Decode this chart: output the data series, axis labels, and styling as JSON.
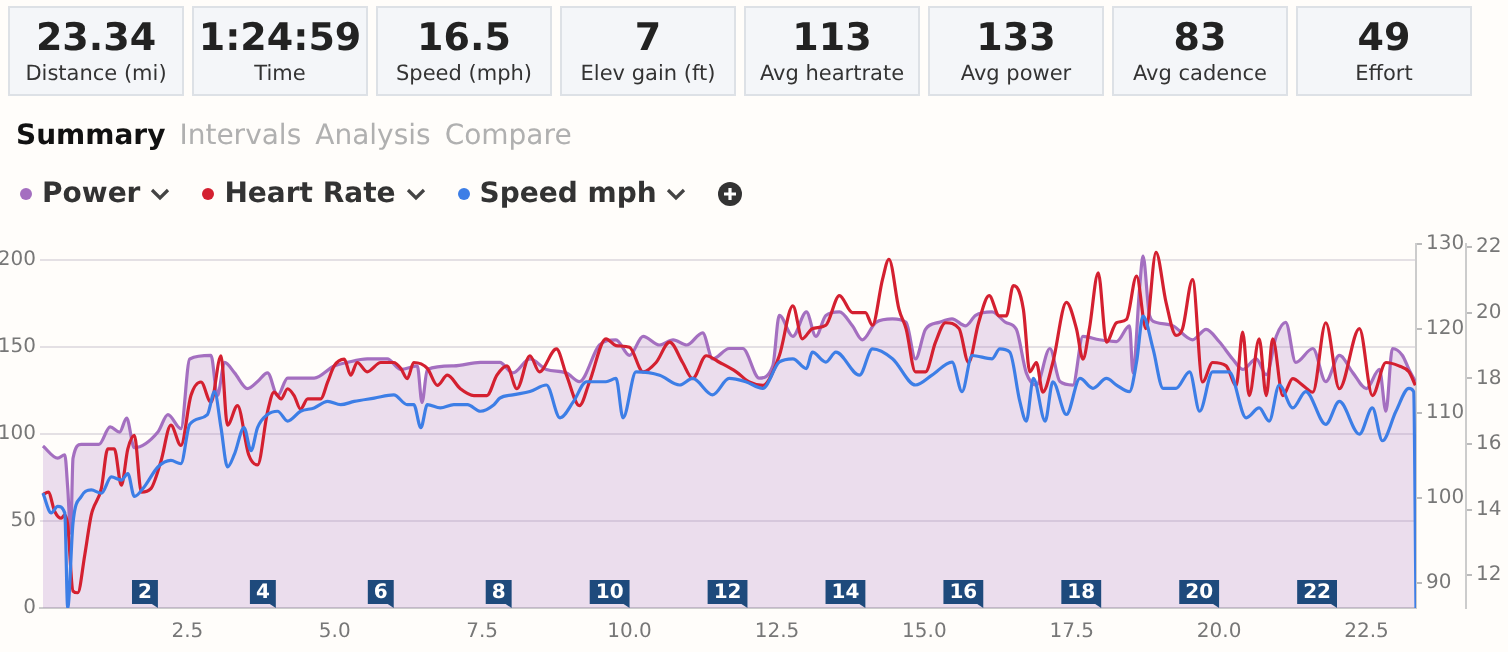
{
  "chart_data": [
    {
      "type": "other",
      "annotations": [
        "23.34",
        "Distance (mi)",
        "1:24:59",
        "Time",
        "16.5",
        "Speed (mph)",
        "7",
        "Elev gain (ft)",
        "113",
        "Avg heartrate",
        "133",
        "Avg power",
        "83",
        "Avg cadence",
        "49",
        "Effort",
        "Summary",
        "Intervals",
        "Analysis",
        "Compare"
      ]
    },
    {
      "type": "line",
      "legend": "top left",
      "grid": "y",
      "marker": "none",
      "line_style": "solid",
      "xlim": [
        0,
        23.34
      ],
      "xticks": [
        2.5,
        {
          "value": 5,
          "label": "5.0"
        },
        7.5,
        {
          "value": 10,
          "label": "10.0"
        },
        12.5,
        {
          "value": 15,
          "label": "15.0"
        },
        17.5,
        {
          "value": 20,
          "label": "20.0"
        },
        22.5
      ],
      "ylim": [
        0,
        209
      ],
      "yticks": [
        0,
        50,
        100,
        150,
        200
      ],
      "y2lim": [
        87,
        130
      ],
      "y2ticks": [
        90,
        100,
        110,
        120,
        130
      ],
      "y3lim": [
        11,
        22.1
      ],
      "y3ticks": [
        12,
        14,
        16,
        18,
        20,
        22
      ],
      "series": [
        {
          "name": "Power",
          "type": "area",
          "color": "#a46fc0",
          "x": [
            0.05,
            0.3,
            0.42,
            0.47,
            0.52,
            0.56,
            0.7,
            1.0,
            1.19,
            1.35,
            1.47,
            1.6,
            2.0,
            2.17,
            2.39,
            2.54,
            2.9,
            3.01,
            3.13,
            3.3,
            3.52,
            3.69,
            3.86,
            4.03,
            4.2,
            4.65,
            4.99,
            5.21,
            5.55,
            5.89,
            6.12,
            6.4,
            6.48,
            6.57,
            7.02,
            7.47,
            7.8,
            8.02,
            8.31,
            8.59,
            8.93,
            9.15,
            9.49,
            9.77,
            10.0,
            10.23,
            10.51,
            10.74,
            10.97,
            11.24,
            11.41,
            11.69,
            11.92,
            12.2,
            12.43,
            12.54,
            12.77,
            13.0,
            13.16,
            13.33,
            13.56,
            13.78,
            13.95,
            14.18,
            14.46,
            14.69,
            14.85,
            15.02,
            15.25,
            15.47,
            15.7,
            15.87,
            16.15,
            16.38,
            16.56,
            16.73,
            16.9,
            17.13,
            17.3,
            17.52,
            17.69,
            17.97,
            18.26,
            18.48,
            18.54,
            18.65,
            18.71,
            18.82,
            18.93,
            19.22,
            19.55,
            19.78,
            20.0,
            20.23,
            20.4,
            20.63,
            20.8,
            20.97,
            21.13,
            21.3,
            21.59,
            21.81,
            22.04,
            22.27,
            22.5,
            22.72,
            22.83,
            22.94,
            23.11,
            23.22,
            23.33
          ],
          "values": [
            93,
            86,
            88,
            69,
            43,
            86,
            94,
            94,
            104,
            101,
            109,
            92,
            101,
            111,
            103,
            143,
            145,
            122,
            141,
            135,
            126,
            130,
            135,
            122,
            132,
            132,
            139,
            141,
            143,
            143,
            137,
            139,
            118,
            137,
            139,
            141,
            141,
            135,
            143,
            137,
            135,
            130,
            151,
            154,
            145,
            156,
            151,
            154,
            151,
            158,
            143,
            149,
            149,
            132,
            139,
            168,
            156,
            170,
            156,
            168,
            170,
            162,
            154,
            164,
            166,
            164,
            143,
            160,
            164,
            166,
            162,
            168,
            170,
            164,
            160,
            135,
            128,
            149,
            130,
            128,
            156,
            154,
            153,
            162,
            135,
            183,
            202,
            168,
            164,
            162,
            154,
            160,
            153,
            143,
            137,
            143,
            134,
            156,
            164,
            141,
            149,
            130,
            145,
            135,
            126,
            137,
            113,
            149,
            145,
            137,
            130
          ]
        },
        {
          "name": "Heart Rate",
          "type": "line",
          "axis": "y2",
          "color": "#d42030",
          "x": [
            0.05,
            0.14,
            0.25,
            0.36,
            0.42,
            0.47,
            0.56,
            0.64,
            0.76,
            0.87,
            1.04,
            1.15,
            1.26,
            1.38,
            1.49,
            1.6,
            1.72,
            1.88,
            2.05,
            2.22,
            2.39,
            2.56,
            2.73,
            2.9,
            3.07,
            3.18,
            3.35,
            3.54,
            3.69,
            3.86,
            3.97,
            4.09,
            4.2,
            4.31,
            4.42,
            4.54,
            4.76,
            4.88,
            4.99,
            5.16,
            5.27,
            5.38,
            5.55,
            5.78,
            6.0,
            6.12,
            6.23,
            6.34,
            6.57,
            6.74,
            6.91,
            7.13,
            7.36,
            7.58,
            7.75,
            7.92,
            8.09,
            8.31,
            8.47,
            8.76,
            8.93,
            9.15,
            9.32,
            9.6,
            9.77,
            10.0,
            10.23,
            10.45,
            10.68,
            10.9,
            11.07,
            11.3,
            11.53,
            11.81,
            12.03,
            12.26,
            12.54,
            12.77,
            12.93,
            13.1,
            13.33,
            13.56,
            13.78,
            14.0,
            14.12,
            14.29,
            14.4,
            14.57,
            14.69,
            14.85,
            15.02,
            15.19,
            15.36,
            15.59,
            15.75,
            15.92,
            16.1,
            16.27,
            16.39,
            16.51,
            16.68,
            16.79,
            16.9,
            17.01,
            17.18,
            17.41,
            17.58,
            17.69,
            17.8,
            17.95,
            18.09,
            18.26,
            18.43,
            18.6,
            18.76,
            18.93,
            19.1,
            19.27,
            19.38,
            19.55,
            19.72,
            19.89,
            20.12,
            20.29,
            20.4,
            20.51,
            20.68,
            20.8,
            20.91,
            21.08,
            21.25,
            21.42,
            21.59,
            21.81,
            22.04,
            22.38,
            22.6,
            22.83,
            23.05,
            23.22,
            23.33
          ],
          "values": [
            100.4,
            100.7,
            98.4,
            97.6,
            98.0,
            96.8,
            89.0,
            88.8,
            93.3,
            98.0,
            101.1,
            105.8,
            105.8,
            101.5,
            105.8,
            107.4,
            100.7,
            101.1,
            104.3,
            108.6,
            106.2,
            112.1,
            113.7,
            111.3,
            116.8,
            108.6,
            110.9,
            105.1,
            103.9,
            110.2,
            112.5,
            111.7,
            112.9,
            112.1,
            110.5,
            111.7,
            111.7,
            113.7,
            115.6,
            116.4,
            114.5,
            116.0,
            114.9,
            116.0,
            116.0,
            115.3,
            114.1,
            116.0,
            115.3,
            113.3,
            114.5,
            112.9,
            112.1,
            112.1,
            114.5,
            115.6,
            112.9,
            116.8,
            114.9,
            117.6,
            114.5,
            110.9,
            113.7,
            118.8,
            118.0,
            117.8,
            114.9,
            116.0,
            118.4,
            116.0,
            114.1,
            116.8,
            116.0,
            114.9,
            113.7,
            113.3,
            116.8,
            122.7,
            118.8,
            120.0,
            120.4,
            123.9,
            121.9,
            121.9,
            120.4,
            125.8,
            128.2,
            122.3,
            120.0,
            114.9,
            114.9,
            118.4,
            120.7,
            120.0,
            116.0,
            120.7,
            123.9,
            121.5,
            121.5,
            125.1,
            122.3,
            114.9,
            116.0,
            112.5,
            116.0,
            123.1,
            120.0,
            116.4,
            120.0,
            126.6,
            118.4,
            120.7,
            121.1,
            126.2,
            120.0,
            129.0,
            123.1,
            119.2,
            120.0,
            125.8,
            113.7,
            116.0,
            115.6,
            113.3,
            119.6,
            112.1,
            118.8,
            112.1,
            118.8,
            112.1,
            114.1,
            113.3,
            112.5,
            120.7,
            112.9,
            120.0,
            112.1,
            116.0,
            115.6,
            114.9,
            113.3
          ]
        },
        {
          "name": "Speed mph",
          "type": "line",
          "axis": "y3",
          "color": "#3d7ee6",
          "x": [
            0.05,
            0.19,
            0.3,
            0.42,
            0.47,
            0.56,
            0.7,
            0.87,
            1.04,
            1.21,
            1.38,
            1.49,
            1.6,
            1.77,
            2.0,
            2.22,
            2.39,
            2.54,
            2.84,
            2.96,
            3.07,
            3.18,
            3.3,
            3.46,
            3.58,
            3.69,
            3.86,
            4.03,
            4.2,
            4.42,
            4.65,
            4.88,
            5.1,
            5.33,
            5.67,
            6.0,
            6.23,
            6.34,
            6.46,
            6.57,
            6.79,
            7.02,
            7.25,
            7.47,
            7.7,
            7.8,
            8.02,
            8.31,
            8.59,
            8.82,
            9.05,
            9.27,
            9.6,
            9.77,
            9.89,
            10.11,
            10.51,
            10.85,
            11.07,
            11.41,
            11.69,
            11.97,
            12.26,
            12.54,
            12.77,
            13.0,
            13.1,
            13.33,
            13.5,
            13.9,
            14.12,
            14.46,
            14.85,
            15.13,
            15.47,
            15.64,
            15.81,
            16.15,
            16.28,
            16.45,
            16.62,
            16.73,
            16.85,
            17.05,
            17.18,
            17.41,
            17.64,
            17.86,
            18.09,
            18.26,
            18.48,
            18.6,
            18.71,
            18.88,
            19.05,
            19.27,
            19.5,
            19.67,
            19.89,
            20.17,
            20.46,
            20.68,
            20.85,
            21.02,
            21.25,
            21.47,
            21.81,
            22.04,
            22.38,
            22.6,
            22.77,
            23.0,
            23.22,
            23.3,
            23.34
          ],
          "values": [
            14.5,
            13.9,
            14.1,
            13.9,
            11.0,
            13.6,
            14.4,
            14.6,
            14.5,
            15.0,
            14.9,
            15.1,
            14.4,
            14.7,
            15.3,
            15.5,
            15.4,
            16.6,
            16.9,
            17.6,
            16.5,
            15.3,
            15.7,
            16.5,
            15.8,
            16.5,
            16.9,
            17.0,
            16.7,
            17.0,
            17.1,
            17.3,
            17.2,
            17.3,
            17.4,
            17.5,
            17.2,
            17.2,
            16.5,
            17.2,
            17.1,
            17.2,
            17.2,
            17.0,
            17.2,
            17.4,
            17.5,
            17.6,
            17.8,
            16.8,
            17.3,
            17.9,
            17.9,
            18.0,
            16.8,
            18.2,
            18.1,
            17.8,
            18.0,
            17.5,
            18.0,
            17.9,
            17.7,
            18.5,
            18.6,
            18.3,
            18.8,
            18.5,
            18.8,
            18.1,
            18.9,
            18.6,
            17.8,
            18.1,
            18.5,
            17.6,
            18.7,
            18.6,
            18.9,
            18.8,
            17.3,
            16.7,
            18.0,
            16.7,
            17.9,
            16.9,
            18.0,
            17.7,
            18.0,
            17.8,
            17.6,
            18.5,
            19.9,
            18.9,
            17.7,
            17.7,
            18.2,
            17.0,
            18.2,
            18.2,
            16.8,
            17.1,
            16.7,
            17.8,
            17.1,
            17.6,
            16.6,
            17.3,
            16.3,
            17.1,
            16.1,
            17.0,
            17.7,
            17.6,
            11.0
          ]
        }
      ],
      "annotations": [
        {
          "text": "2",
          "x": 2,
          "y": 0
        },
        {
          "text": "4",
          "x": 4,
          "y": 0
        },
        {
          "text": "6",
          "x": 6,
          "y": 0
        },
        {
          "text": "8",
          "x": 8,
          "y": 0
        },
        {
          "text": "10",
          "x": 10,
          "y": 0
        },
        {
          "text": "12",
          "x": 12,
          "y": 0
        },
        {
          "text": "14",
          "x": 14,
          "y": 0
        },
        {
          "text": "16",
          "x": 16,
          "y": 0
        },
        {
          "text": "18",
          "x": 18,
          "y": 0
        },
        {
          "text": "20",
          "x": 20,
          "y": 0
        },
        {
          "text": "22",
          "x": 22,
          "y": 0
        }
      ]
    }
  ]
}
